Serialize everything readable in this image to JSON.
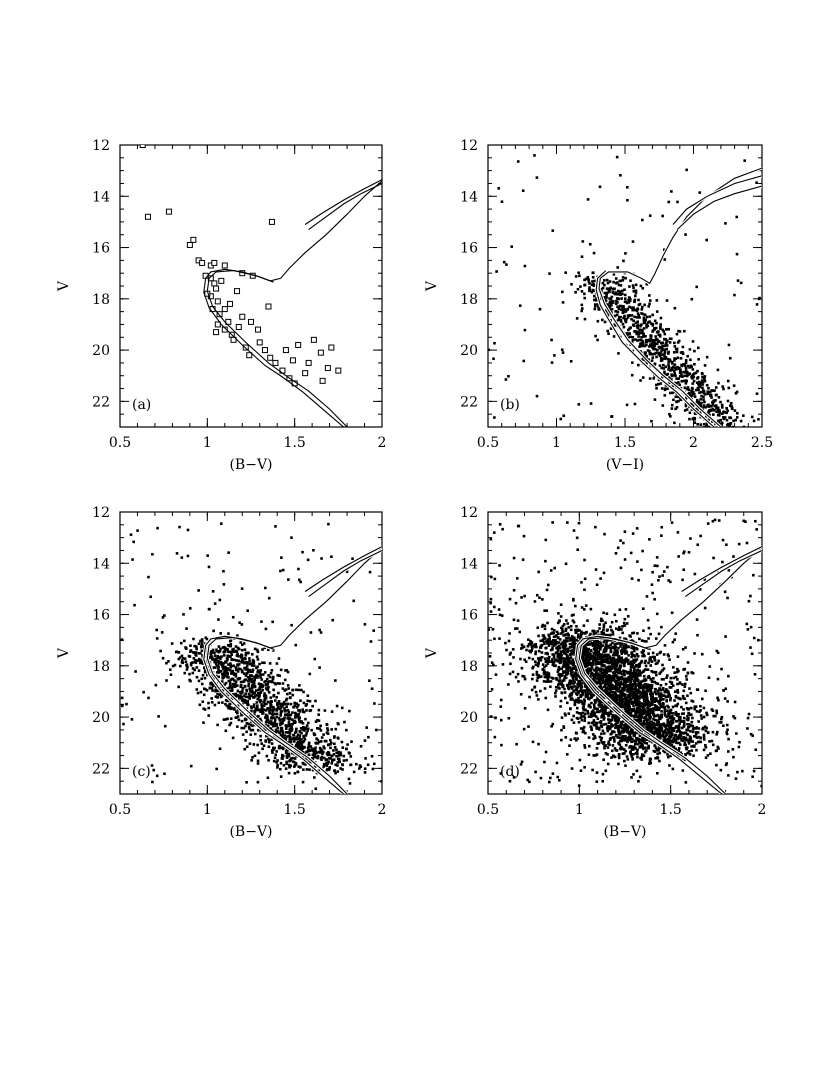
{
  "chart_data": [
    {
      "type": "scatter",
      "panel_label": "(a)",
      "xlabel": "(B−V)",
      "ylabel": "V",
      "xlim": [
        0.5,
        2.0
      ],
      "ylim": [
        23,
        12
      ],
      "x_ticks": [
        "0.5",
        "1",
        "1.5",
        "2"
      ],
      "x_tick_values": [
        0.5,
        1.0,
        1.5,
        2.0
      ],
      "y_ticks": [
        "12",
        "14",
        "16",
        "18",
        "20",
        "22"
      ],
      "y_tick_values": [
        12,
        14,
        16,
        18,
        20,
        22
      ],
      "marker": "open-square",
      "points": [
        [
          0.66,
          14.8
        ],
        [
          0.78,
          14.6
        ],
        [
          0.63,
          12.0
        ],
        [
          0.9,
          15.9
        ],
        [
          0.92,
          15.7
        ],
        [
          1.37,
          15.0
        ],
        [
          0.95,
          16.5
        ],
        [
          0.97,
          16.6
        ],
        [
          1.02,
          16.7
        ],
        [
          1.04,
          16.6
        ],
        [
          1.1,
          16.7
        ],
        [
          0.99,
          17.1
        ],
        [
          1.02,
          17.2
        ],
        [
          1.04,
          17.4
        ],
        [
          1.05,
          17.6
        ],
        [
          1.02,
          17.9
        ],
        [
          1.06,
          18.1
        ],
        [
          1.03,
          18.4
        ],
        [
          1.07,
          18.6
        ],
        [
          1.1,
          18.4
        ],
        [
          1.13,
          18.2
        ],
        [
          1.06,
          19.0
        ],
        [
          1.1,
          19.2
        ],
        [
          1.14,
          19.4
        ],
        [
          1.18,
          19.1
        ],
        [
          1.2,
          18.7
        ],
        [
          1.25,
          18.9
        ],
        [
          1.29,
          19.2
        ],
        [
          1.3,
          19.7
        ],
        [
          1.22,
          19.9
        ],
        [
          1.33,
          20.0
        ],
        [
          1.36,
          20.3
        ],
        [
          1.39,
          20.5
        ],
        [
          1.43,
          20.8
        ],
        [
          1.47,
          21.1
        ],
        [
          1.45,
          20.0
        ],
        [
          1.49,
          20.4
        ],
        [
          1.52,
          19.8
        ],
        [
          1.56,
          20.9
        ],
        [
          1.58,
          20.5
        ],
        [
          1.61,
          19.6
        ],
        [
          1.65,
          20.1
        ],
        [
          1.69,
          20.7
        ],
        [
          1.71,
          19.9
        ],
        [
          1.75,
          20.8
        ],
        [
          1.66,
          21.2
        ],
        [
          1.5,
          21.3
        ],
        [
          1.35,
          18.3
        ],
        [
          1.2,
          17.0
        ],
        [
          1.26,
          17.1
        ],
        [
          1.08,
          17.3
        ],
        [
          1.0,
          17.8
        ],
        [
          1.05,
          19.3
        ],
        [
          1.15,
          19.6
        ],
        [
          1.17,
          17.7
        ],
        [
          1.12,
          18.9
        ],
        [
          1.24,
          20.2
        ]
      ],
      "isochrone": {
        "ms_outer": [
          [
            1.8,
            23.0
          ],
          [
            1.7,
            22.3
          ],
          [
            1.58,
            21.6
          ],
          [
            1.45,
            21.0
          ],
          [
            1.35,
            20.5
          ],
          [
            1.22,
            19.7
          ],
          [
            1.1,
            18.9
          ],
          [
            1.03,
            18.3
          ],
          [
            1.0,
            17.7
          ],
          [
            1.01,
            17.2
          ],
          [
            1.05,
            16.95
          ],
          [
            1.15,
            16.9
          ],
          [
            1.28,
            17.1
          ],
          [
            1.36,
            17.3
          ],
          [
            1.42,
            17.2
          ],
          [
            1.47,
            16.8
          ],
          [
            1.56,
            16.2
          ],
          [
            1.68,
            15.5
          ],
          [
            1.8,
            14.7
          ],
          [
            1.9,
            14.0
          ],
          [
            2.0,
            13.4
          ]
        ],
        "ms_inner": [
          [
            1.78,
            23.0
          ],
          [
            1.66,
            22.3
          ],
          [
            1.55,
            21.65
          ],
          [
            1.43,
            21.05
          ],
          [
            1.33,
            20.6
          ],
          [
            1.2,
            19.8
          ],
          [
            1.08,
            19.0
          ],
          [
            1.01,
            18.35
          ],
          [
            0.98,
            17.75
          ],
          [
            0.99,
            17.2
          ],
          [
            1.02,
            16.95
          ],
          [
            1.1,
            16.85
          ],
          [
            1.2,
            16.95
          ],
          [
            1.3,
            17.15
          ],
          [
            1.38,
            17.35
          ]
        ],
        "rgb_band": [
          [
            1.58,
            15.3
          ],
          [
            1.68,
            14.8
          ],
          [
            1.78,
            14.3
          ],
          [
            1.88,
            13.9
          ],
          [
            2.0,
            13.5
          ]
        ],
        "loop": [
          [
            1.56,
            15.1
          ],
          [
            1.66,
            14.65
          ],
          [
            1.78,
            14.15
          ],
          [
            1.9,
            13.7
          ],
          [
            2.0,
            13.35
          ]
        ]
      }
    },
    {
      "type": "scatter",
      "panel_label": "(b)",
      "xlabel": "(V−I)",
      "ylabel": "V",
      "xlim": [
        0.5,
        2.5
      ],
      "ylim": [
        23,
        12
      ],
      "x_ticks": [
        "0.5",
        "1",
        "1.5",
        "2",
        "2.5"
      ],
      "x_tick_values": [
        0.5,
        1.0,
        1.5,
        2.0,
        2.5
      ],
      "y_ticks": [
        "12",
        "14",
        "16",
        "18",
        "20",
        "22"
      ],
      "y_tick_values": [
        12,
        14,
        16,
        18,
        20,
        22
      ],
      "marker": "dot",
      "cloud": {
        "n": 900,
        "ms_x": [
          1.3,
          2.2
        ],
        "ms_v": [
          17.2,
          23.0
        ],
        "scatter_x": 0.12,
        "scatter_v": 0.35
      },
      "isochrone": {
        "ms_outer": [
          [
            2.2,
            23.0
          ],
          [
            2.05,
            22.3
          ],
          [
            1.92,
            21.6
          ],
          [
            1.78,
            21.0
          ],
          [
            1.66,
            20.4
          ],
          [
            1.52,
            19.6
          ],
          [
            1.42,
            18.8
          ],
          [
            1.35,
            18.2
          ],
          [
            1.31,
            17.6
          ],
          [
            1.32,
            17.2
          ],
          [
            1.38,
            16.95
          ],
          [
            1.52,
            16.95
          ],
          [
            1.62,
            17.2
          ],
          [
            1.68,
            17.4
          ],
          [
            1.72,
            17.0
          ],
          [
            1.78,
            16.3
          ],
          [
            1.85,
            15.6
          ],
          [
            1.95,
            14.8
          ],
          [
            2.1,
            14.0
          ],
          [
            2.3,
            13.3
          ],
          [
            2.5,
            12.9
          ]
        ],
        "ms_inner": [
          [
            2.15,
            23.0
          ],
          [
            2.0,
            22.3
          ],
          [
            1.88,
            21.65
          ],
          [
            1.74,
            21.05
          ],
          [
            1.62,
            20.45
          ],
          [
            1.48,
            19.7
          ],
          [
            1.39,
            18.9
          ],
          [
            1.32,
            18.25
          ],
          [
            1.29,
            17.65
          ],
          [
            1.3,
            17.2
          ],
          [
            1.36,
            16.9
          ]
        ],
        "rgb_band": [
          [
            1.88,
            15.3
          ],
          [
            2.0,
            14.7
          ],
          [
            2.15,
            14.2
          ],
          [
            2.3,
            13.9
          ],
          [
            2.5,
            13.6
          ]
        ],
        "loop": [
          [
            1.85,
            15.1
          ],
          [
            1.95,
            14.5
          ],
          [
            2.1,
            14.0
          ],
          [
            2.3,
            13.5
          ],
          [
            2.5,
            13.2
          ]
        ]
      }
    },
    {
      "type": "scatter",
      "panel_label": "(c)",
      "xlabel": "(B−V)",
      "ylabel": "V",
      "xlim": [
        0.5,
        2.0
      ],
      "ylim": [
        23,
        12
      ],
      "x_ticks": [
        "0.5",
        "1",
        "1.5",
        "2"
      ],
      "x_tick_values": [
        0.5,
        1.0,
        1.5,
        2.0
      ],
      "y_ticks": [
        "12",
        "14",
        "16",
        "18",
        "20",
        "22"
      ],
      "y_tick_values": [
        12,
        14,
        16,
        18,
        20,
        22
      ],
      "marker": "dot",
      "cloud": {
        "n": 1400,
        "ms_x": [
          1.0,
          1.65
        ],
        "ms_v": [
          17.2,
          22.0
        ],
        "scatter_x": 0.13,
        "scatter_v": 0.45
      },
      "isochrone": {
        "ms_outer": [
          [
            1.8,
            23.0
          ],
          [
            1.7,
            22.3
          ],
          [
            1.58,
            21.6
          ],
          [
            1.45,
            21.0
          ],
          [
            1.35,
            20.5
          ],
          [
            1.22,
            19.7
          ],
          [
            1.1,
            18.9
          ],
          [
            1.03,
            18.3
          ],
          [
            1.0,
            17.7
          ],
          [
            1.01,
            17.2
          ],
          [
            1.05,
            16.95
          ],
          [
            1.15,
            16.9
          ],
          [
            1.28,
            17.1
          ],
          [
            1.36,
            17.3
          ],
          [
            1.42,
            17.2
          ],
          [
            1.47,
            16.8
          ],
          [
            1.56,
            16.2
          ],
          [
            1.68,
            15.5
          ],
          [
            1.8,
            14.7
          ],
          [
            1.9,
            14.0
          ],
          [
            2.0,
            13.4
          ]
        ],
        "ms_inner": [
          [
            1.78,
            23.0
          ],
          [
            1.66,
            22.3
          ],
          [
            1.55,
            21.65
          ],
          [
            1.43,
            21.05
          ],
          [
            1.33,
            20.6
          ],
          [
            1.2,
            19.8
          ],
          [
            1.08,
            19.0
          ],
          [
            1.01,
            18.35
          ],
          [
            0.98,
            17.75
          ],
          [
            0.99,
            17.2
          ],
          [
            1.02,
            16.95
          ],
          [
            1.1,
            16.85
          ],
          [
            1.2,
            16.95
          ],
          [
            1.3,
            17.15
          ],
          [
            1.38,
            17.35
          ]
        ],
        "rgb_band": [
          [
            1.58,
            15.3
          ],
          [
            1.68,
            14.8
          ],
          [
            1.78,
            14.3
          ],
          [
            1.88,
            13.9
          ],
          [
            2.0,
            13.5
          ]
        ],
        "loop": [
          [
            1.56,
            15.1
          ],
          [
            1.66,
            14.65
          ],
          [
            1.78,
            14.15
          ],
          [
            1.9,
            13.7
          ],
          [
            2.0,
            13.35
          ]
        ]
      }
    },
    {
      "type": "scatter",
      "panel_label": "(d)",
      "xlabel": "(B−V)",
      "ylabel": "V",
      "xlim": [
        0.5,
        2.0
      ],
      "ylim": [
        23,
        12
      ],
      "x_ticks": [
        "0.5",
        "1",
        "1.5",
        "2"
      ],
      "x_tick_values": [
        0.5,
        1.0,
        1.5,
        2.0
      ],
      "y_ticks": [
        "12",
        "14",
        "16",
        "18",
        "20",
        "22"
      ],
      "y_tick_values": [
        12,
        14,
        16,
        18,
        20,
        22
      ],
      "marker": "dot",
      "cloud": {
        "n": 3200,
        "ms_x": [
          0.98,
          1.45
        ],
        "ms_v": [
          16.8,
          21.2
        ],
        "scatter_x": 0.17,
        "scatter_v": 0.8
      },
      "isochrone": {
        "ms_outer": [
          [
            1.8,
            23.0
          ],
          [
            1.7,
            22.3
          ],
          [
            1.58,
            21.6
          ],
          [
            1.45,
            21.0
          ],
          [
            1.35,
            20.5
          ],
          [
            1.22,
            19.7
          ],
          [
            1.1,
            18.9
          ],
          [
            1.03,
            18.3
          ],
          [
            1.0,
            17.7
          ],
          [
            1.01,
            17.2
          ],
          [
            1.05,
            16.95
          ],
          [
            1.15,
            16.9
          ],
          [
            1.28,
            17.1
          ],
          [
            1.36,
            17.3
          ],
          [
            1.42,
            17.2
          ],
          [
            1.47,
            16.8
          ],
          [
            1.56,
            16.2
          ],
          [
            1.68,
            15.5
          ],
          [
            1.8,
            14.7
          ],
          [
            1.9,
            14.0
          ],
          [
            2.0,
            13.4
          ]
        ],
        "ms_inner": [
          [
            1.78,
            23.0
          ],
          [
            1.66,
            22.3
          ],
          [
            1.55,
            21.65
          ],
          [
            1.43,
            21.05
          ],
          [
            1.33,
            20.6
          ],
          [
            1.2,
            19.8
          ],
          [
            1.08,
            19.0
          ],
          [
            1.01,
            18.35
          ],
          [
            0.98,
            17.75
          ],
          [
            0.99,
            17.2
          ],
          [
            1.02,
            16.95
          ],
          [
            1.1,
            16.85
          ],
          [
            1.2,
            16.95
          ],
          [
            1.3,
            17.15
          ],
          [
            1.38,
            17.35
          ]
        ],
        "rgb_band": [
          [
            1.58,
            15.3
          ],
          [
            1.68,
            14.8
          ],
          [
            1.78,
            14.3
          ],
          [
            1.88,
            13.9
          ],
          [
            2.0,
            13.5
          ]
        ],
        "loop": [
          [
            1.56,
            15.1
          ],
          [
            1.66,
            14.65
          ],
          [
            1.78,
            14.15
          ],
          [
            1.9,
            13.7
          ],
          [
            2.0,
            13.35
          ]
        ]
      }
    }
  ]
}
